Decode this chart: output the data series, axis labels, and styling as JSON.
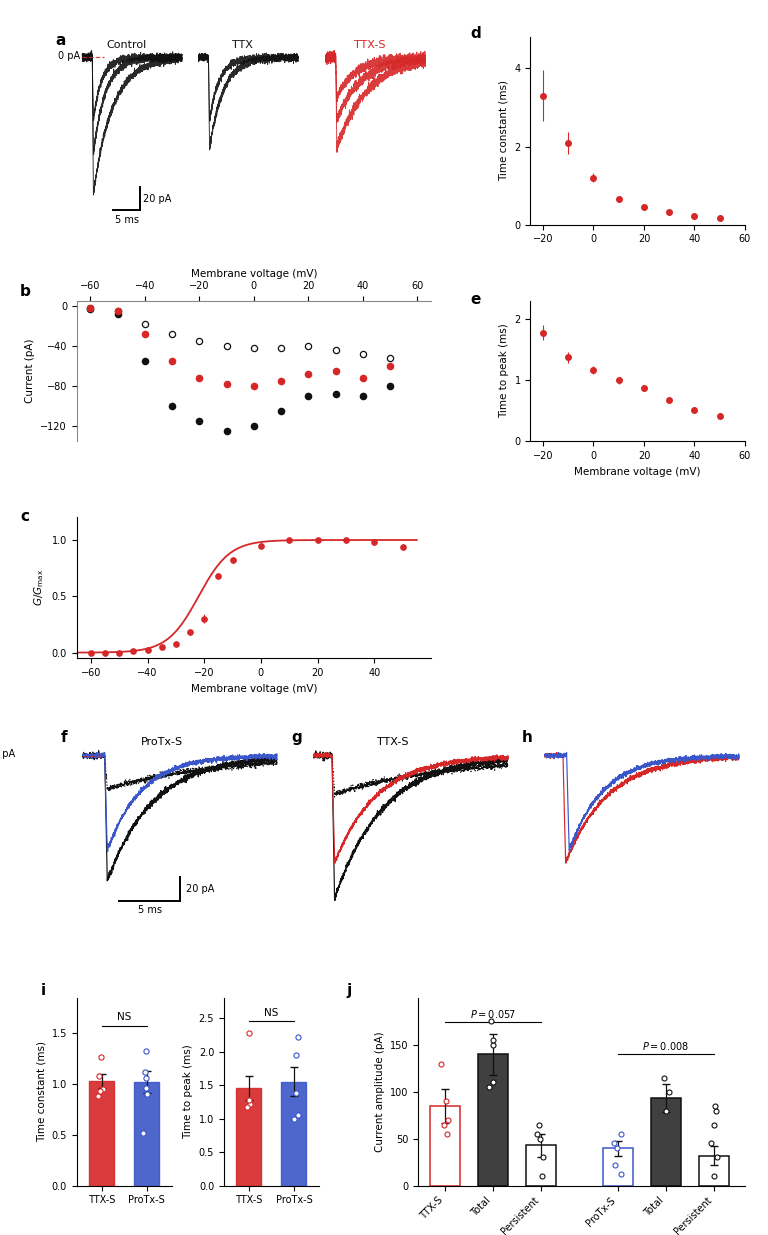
{
  "panel_b_mv": [
    -60,
    -50,
    -40,
    -30,
    -20,
    -10,
    0,
    10,
    20,
    30,
    40,
    50
  ],
  "panel_b_black_filled": [
    -3,
    -8,
    -55,
    -100,
    -115,
    -125,
    -120,
    -105,
    -90,
    -88,
    -90,
    -80
  ],
  "panel_b_black_open": [
    -2,
    -5,
    -18,
    -28,
    -35,
    -40,
    -42,
    -42,
    -40,
    -44,
    -48,
    -52
  ],
  "panel_b_red_filled": [
    -2,
    -5,
    -28,
    -55,
    -72,
    -78,
    -80,
    -75,
    -68,
    -65,
    -72,
    -60
  ],
  "panel_c_mv": [
    -60,
    -55,
    -50,
    -45,
    -40,
    -35,
    -30,
    -25,
    -20,
    -15,
    -10,
    0,
    10,
    20,
    30,
    40,
    50
  ],
  "panel_c_G": [
    0.0,
    0.0,
    0.0,
    0.01,
    0.02,
    0.05,
    0.08,
    0.18,
    0.3,
    0.68,
    0.82,
    0.95,
    1.0,
    1.0,
    1.0,
    0.98,
    0.94
  ],
  "panel_c_G_err": [
    0.003,
    0.003,
    0.003,
    0.005,
    0.008,
    0.012,
    0.015,
    0.025,
    0.04,
    0.03,
    0.025,
    0.02,
    0.015,
    0.015,
    0.02,
    0.02,
    0.025
  ],
  "panel_d_mv": [
    -20,
    -10,
    0,
    10,
    20,
    30,
    40,
    50
  ],
  "panel_d_tau": [
    3.3,
    2.1,
    1.2,
    0.65,
    0.45,
    0.32,
    0.22,
    0.18
  ],
  "panel_d_tau_err": [
    0.65,
    0.28,
    0.12,
    0.08,
    0.06,
    0.04,
    0.03,
    0.025
  ],
  "panel_e_mv": [
    -20,
    -10,
    0,
    10,
    20,
    30,
    40,
    50
  ],
  "panel_e_ttp": [
    1.78,
    1.38,
    1.17,
    1.0,
    0.88,
    0.68,
    0.52,
    0.42
  ],
  "panel_e_ttp_err": [
    0.12,
    0.09,
    0.07,
    0.06,
    0.05,
    0.05,
    0.04,
    0.04
  ],
  "panel_i_tc_ttxs": 1.03,
  "panel_i_tc_ttxs_err": 0.07,
  "panel_i_tc_protxs": 1.02,
  "panel_i_tc_protxs_err": 0.11,
  "panel_i_ttp_ttxs": 1.45,
  "panel_i_ttp_ttxs_err": 0.18,
  "panel_i_ttp_protxs": 1.55,
  "panel_i_ttp_protxs_err": 0.22,
  "panel_i_tc_dots_ttxs": [
    1.27,
    0.95,
    0.88,
    0.93,
    1.08
  ],
  "panel_i_tc_dots_protxs": [
    1.33,
    0.52,
    0.9,
    0.96,
    1.06,
    1.12
  ],
  "panel_i_ttp_dots_ttxs": [
    2.28,
    1.22,
    1.18,
    1.28
  ],
  "panel_i_ttp_dots_protxs": [
    2.22,
    1.0,
    1.05,
    1.95,
    1.38
  ],
  "panel_j_vals": [
    85,
    140,
    43,
    40,
    93,
    32
  ],
  "panel_j_errs": [
    18,
    22,
    12,
    8,
    15,
    10
  ],
  "panel_j_cats": [
    "TTX-S",
    "Total",
    "Persistent",
    "ProTx-S",
    "Total",
    "Persistent"
  ],
  "panel_j_dots": [
    [
      130,
      55,
      65,
      90,
      70
    ],
    [
      150,
      110,
      105,
      175,
      155
    ],
    [
      10,
      30,
      50,
      55,
      65
    ],
    [
      12,
      22,
      40,
      55,
      45
    ],
    [
      80,
      100,
      115
    ],
    [
      10,
      30,
      45,
      65,
      80,
      85
    ]
  ],
  "red": "#d62728",
  "blue": "#3a56c8",
  "black": "#111111",
  "gray": "#555555"
}
